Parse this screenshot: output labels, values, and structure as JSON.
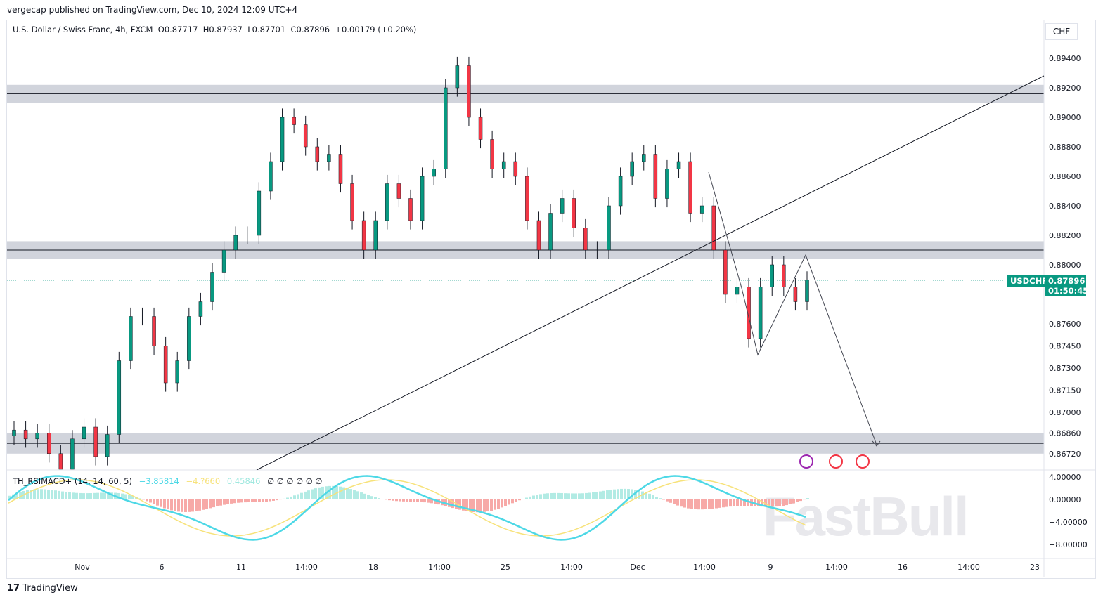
{
  "header": {
    "published": "vergecap published on TradingView.com, Dec 10, 2024 12:09 UTC+4",
    "currency": "CHF"
  },
  "legend": {
    "symbol": "U.S. Dollar / Swiss Franc, 4h, FXCM",
    "open": "O0.87717",
    "high": "H0.87937",
    "low": "L0.87701",
    "close": "C0.87896",
    "change": "+0.00179 (+0.20%)"
  },
  "indicator": {
    "name": "TH_RSIMACD+ (14, 14, 60, 5)",
    "v1": "−3.85814",
    "v2": "−4.?660",
    "v3": "0.45846",
    "v4": "∅ ∅ ∅ ∅ ∅ ∅",
    "colors": {
      "cyan": "#4dd8e6",
      "yellow": "#f7e27a"
    }
  },
  "price_tag": {
    "symbol": "USDCHF",
    "price": "0.87896",
    "countdown": "01:50:45",
    "color": "#089981"
  },
  "footer": {
    "brand": "TradingView"
  },
  "watermark": "FastBull",
  "chart_data": {
    "type": "candlestick",
    "yticks": [
      "0.89400",
      "0.89200",
      "0.89000",
      "0.88800",
      "0.88600",
      "0.88400",
      "0.88200",
      "0.88000",
      "0.87600",
      "0.87450",
      "0.87300",
      "0.87150",
      "0.87000",
      "0.86860",
      "0.86720"
    ],
    "ytick_values": [
      0.894,
      0.892,
      0.89,
      0.888,
      0.886,
      0.884,
      0.882,
      0.88,
      0.876,
      0.8745,
      0.873,
      0.8715,
      0.87,
      0.8686,
      0.8672
    ],
    "xticks": [
      "Nov",
      "6",
      "11",
      "14:00",
      "18",
      "14:00",
      "25",
      "14:00",
      "Dec",
      "14:00",
      "9",
      "14:00",
      "16",
      "14:00",
      "23"
    ],
    "closes": [
      0.8688,
      0.8682,
      0.8686,
      0.8672,
      0.866,
      0.8682,
      0.869,
      0.867,
      0.8685,
      0.8735,
      0.8765,
      0.8765,
      0.8745,
      0.872,
      0.8735,
      0.8765,
      0.8775,
      0.8795,
      0.881,
      0.882,
      0.882,
      0.885,
      0.887,
      0.89,
      0.8895,
      0.888,
      0.887,
      0.8875,
      0.8855,
      0.883,
      0.881,
      0.883,
      0.8855,
      0.8845,
      0.883,
      0.886,
      0.8865,
      0.892,
      0.8935,
      0.89,
      0.8885,
      0.8865,
      0.887,
      0.886,
      0.883,
      0.881,
      0.8835,
      0.8845,
      0.8825,
      0.881,
      0.881,
      0.884,
      0.886,
      0.887,
      0.8875,
      0.8845,
      0.8865,
      0.887,
      0.8835,
      0.884,
      0.881,
      0.878,
      0.8785,
      0.875,
      0.8785,
      0.88,
      0.8785,
      0.8775,
      0.87896
    ],
    "zones": [
      [
        0.891,
        0.8922
      ],
      [
        0.8804,
        0.8816
      ],
      [
        0.8672,
        0.8686
      ]
    ],
    "ind_yticks": [
      "4.00000",
      "0.00000",
      "−4.00000",
      "−8.00000"
    ]
  }
}
